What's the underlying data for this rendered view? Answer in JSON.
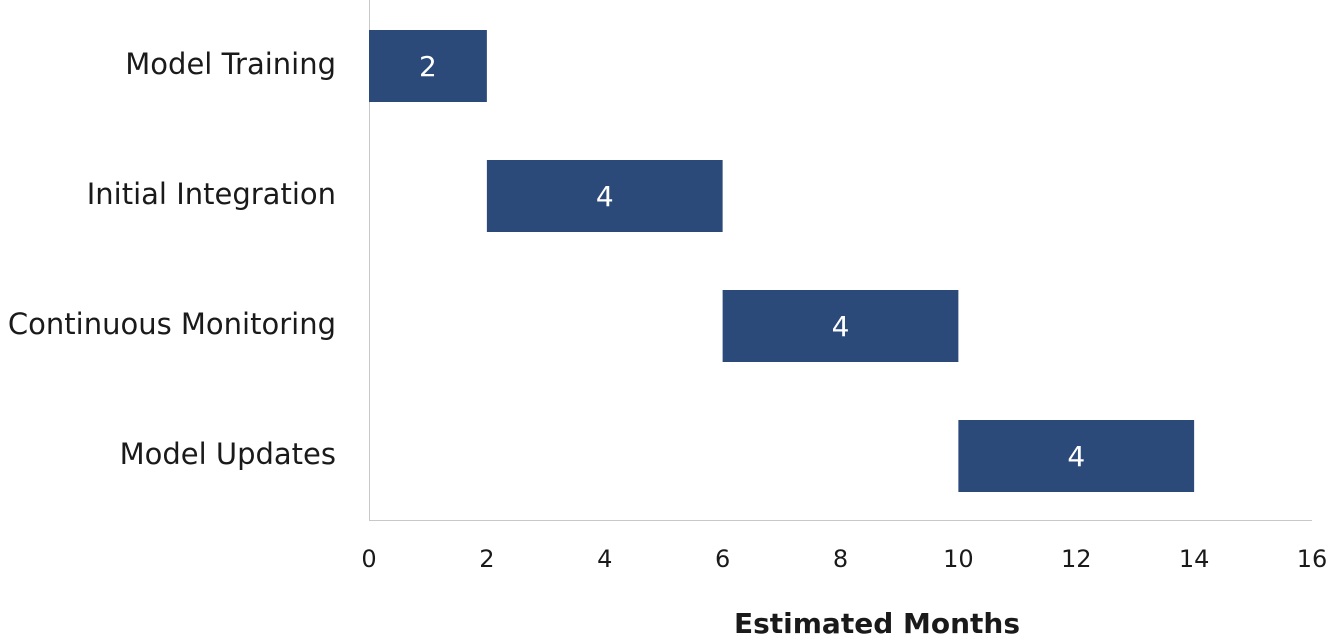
{
  "chart_data": {
    "type": "gantt",
    "categories": [
      "Model Training",
      "Initial Integration",
      "Continuous Monitoring",
      "Model Updates"
    ],
    "start": [
      0,
      2,
      6,
      10
    ],
    "values": [
      2,
      4,
      4,
      4
    ],
    "color": "#2b4a7a",
    "xlabel": "Estimated Months",
    "xlim": [
      0,
      16
    ],
    "xticks": [
      0,
      2,
      4,
      6,
      8,
      10,
      12,
      14,
      16
    ]
  }
}
